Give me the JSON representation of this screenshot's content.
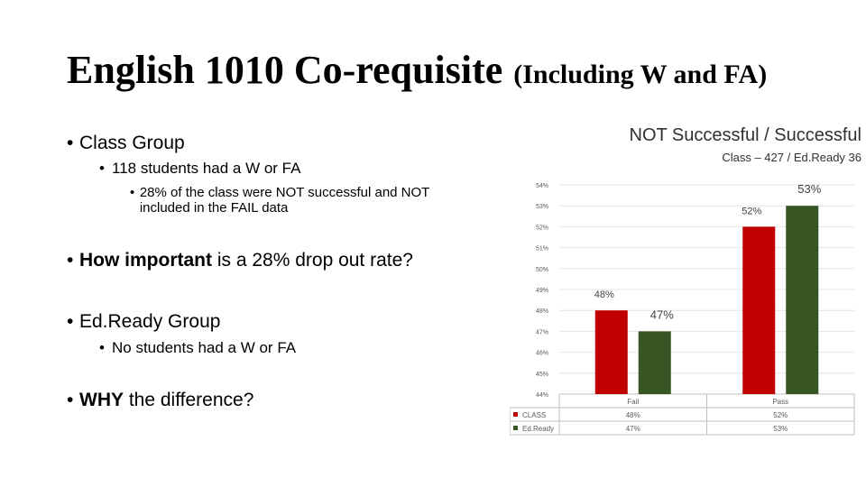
{
  "slide": {
    "title_main": "English 1010 Co-requisite",
    "title_sub": "(Including W and FA)"
  },
  "bullets": {
    "class_group": "Class Group",
    "class_w_fa": "118 students had a W or FA",
    "class_pct": "28% of the class were NOT successful and NOT included in the FAIL data",
    "question_strong": "How important",
    "question_rest": " is a 28% drop out rate?",
    "edready_group": "Ed.Ready Group",
    "edready_w_fa": "No students had a W or FA",
    "why_strong": "WHY",
    "why_rest": " the difference?"
  },
  "chart_data": {
    "type": "bar",
    "title": "NOT Successful / Successful",
    "subtitle": "Class – 427 / Ed.Ready 36",
    "categories": [
      "Fail",
      "Pass"
    ],
    "ylim": [
      44,
      54
    ],
    "yticks": [
      "54%",
      "53%",
      "52%",
      "51%",
      "50%",
      "49%",
      "48%",
      "47%",
      "46%",
      "45%",
      "44%"
    ],
    "series": [
      {
        "name": "CLASS",
        "values": [
          48,
          52
        ],
        "labels": [
          "48%",
          "52%"
        ],
        "color": "#c00000"
      },
      {
        "name": "Ed.Ready",
        "values": [
          47,
          53
        ],
        "labels": [
          "47%",
          "53%"
        ],
        "color": "#375623"
      }
    ],
    "table": {
      "rows": [
        {
          "name": "CLASS",
          "cells": [
            "48%",
            "52%"
          ]
        },
        {
          "name": "Ed.Ready",
          "cells": [
            "47%",
            "53%"
          ]
        }
      ]
    },
    "legend": "data-table"
  }
}
